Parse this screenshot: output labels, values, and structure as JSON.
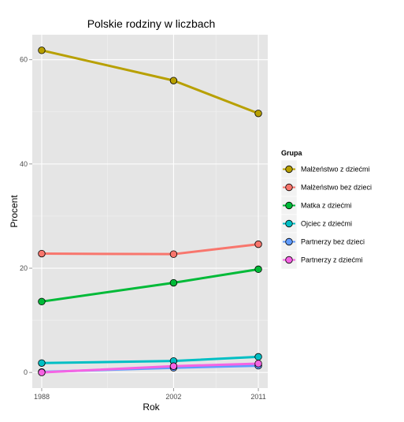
{
  "chart_data": {
    "type": "line",
    "title": "Polskie rodziny w liczbach",
    "xlabel": "Rok",
    "ylabel": "Procent",
    "x": [
      1988,
      2002,
      2011
    ],
    "x_tick_labels": [
      "1988",
      "2002",
      "2011"
    ],
    "y_ticks": [
      0,
      20,
      40,
      60
    ],
    "y_tick_labels": [
      "0",
      "20",
      "40",
      "60"
    ],
    "xlim": [
      1987,
      2012
    ],
    "ylim": [
      -3,
      64.8
    ],
    "grid": true,
    "legend": {
      "title": "Grupa",
      "position": "right"
    },
    "series": [
      {
        "name": "Małżeństwo z dziećmi",
        "color": "#b8a000",
        "values": [
          61.8,
          56.0,
          49.7
        ]
      },
      {
        "name": "Małżeństwo bez dzieci",
        "color": "#f8766d",
        "values": [
          22.8,
          22.7,
          24.6
        ]
      },
      {
        "name": "Matka z dziećmi",
        "color": "#00ba38",
        "values": [
          13.6,
          17.2,
          19.8
        ]
      },
      {
        "name": "Ojciec z dziećmi",
        "color": "#00bfc4",
        "values": [
          1.8,
          2.2,
          3.0
        ]
      },
      {
        "name": "Partnerzy bez dzieci",
        "color": "#619cff",
        "values": [
          0.1,
          0.9,
          1.3
        ]
      },
      {
        "name": "Partnerzy z dziećmi",
        "color": "#f564e3",
        "values": [
          0.0,
          1.2,
          1.7
        ]
      }
    ]
  }
}
